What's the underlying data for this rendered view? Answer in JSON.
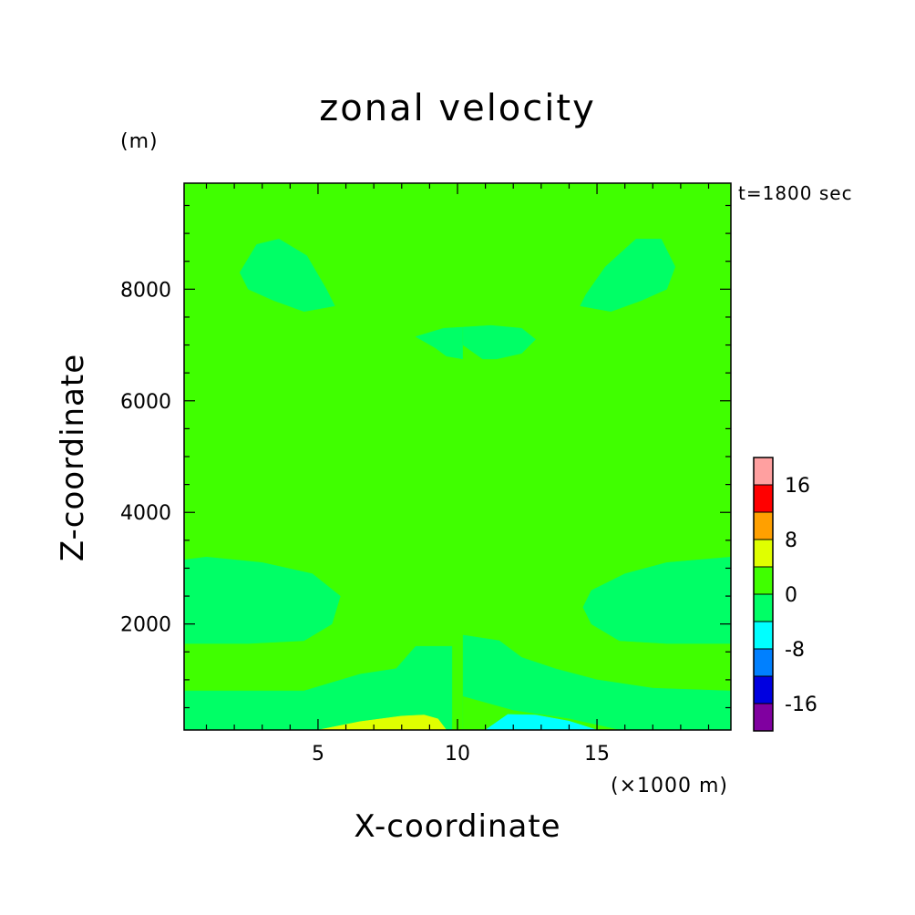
{
  "chart_data": {
    "type": "heatmap",
    "title": "zonal velocity",
    "xlabel": "X-coordinate",
    "ylabel": "Z-coordinate",
    "x_unit": "(×1000 m)",
    "y_unit": "(m)",
    "annotation": "t=1800 sec",
    "xlim": [
      0.2,
      19.8
    ],
    "ylim": [
      100,
      9900
    ],
    "x_ticks": [
      5,
      10,
      15
    ],
    "y_ticks": [
      2000,
      4000,
      6000,
      8000
    ],
    "colorbar": {
      "levels": [
        -20,
        -16,
        -12,
        -8,
        -4,
        0,
        4,
        8,
        12,
        16,
        20
      ],
      "colors": [
        "#8000a0",
        "#0000e0",
        "#0080ff",
        "#00ffff",
        "#00ff66",
        "#40ff00",
        "#e0ff00",
        "#ffa000",
        "#ff0000",
        "#ffa0a0"
      ],
      "tick_labels": [
        "-16",
        "-8",
        "0",
        "8",
        "16"
      ],
      "tick_values": [
        -16,
        -8,
        0,
        8,
        16
      ]
    },
    "background_value": 2,
    "regions": [
      {
        "name": "left-lower-band",
        "value": -2,
        "points": [
          [
            0.2,
            100
          ],
          [
            5,
            100
          ],
          [
            7.5,
            250
          ],
          [
            9.8,
            100
          ],
          [
            9.8,
            1600
          ],
          [
            8.5,
            1600
          ],
          [
            7.8,
            1200
          ],
          [
            6.5,
            1100
          ],
          [
            4.5,
            800
          ],
          [
            0.2,
            800
          ]
        ]
      },
      {
        "name": "left-mid-blob",
        "value": -2,
        "points": [
          [
            0.2,
            1650
          ],
          [
            2.5,
            1650
          ],
          [
            4.5,
            1700
          ],
          [
            5.5,
            2000
          ],
          [
            5.8,
            2500
          ],
          [
            4.8,
            2900
          ],
          [
            3,
            3100
          ],
          [
            1,
            3200
          ],
          [
            0.2,
            3150
          ]
        ]
      },
      {
        "name": "left-upper-blob",
        "value": -2,
        "points": [
          [
            2.2,
            8300
          ],
          [
            2.8,
            8800
          ],
          [
            3.6,
            8900
          ],
          [
            4.6,
            8600
          ],
          [
            5.3,
            8000
          ],
          [
            5.6,
            7700
          ],
          [
            4.5,
            7600
          ],
          [
            3.4,
            7800
          ],
          [
            2.5,
            8000
          ]
        ]
      },
      {
        "name": "center-upper-lens-left",
        "value": -2,
        "points": [
          [
            8.5,
            7150
          ],
          [
            9.5,
            7300
          ],
          [
            10.2,
            7320
          ],
          [
            10.2,
            6750
          ],
          [
            9.6,
            6800
          ],
          [
            9.2,
            6950
          ]
        ]
      },
      {
        "name": "right-half",
        "value": 2,
        "points": [
          [
            10.2,
            9900
          ],
          [
            19.8,
            9900
          ],
          [
            19.8,
            100
          ],
          [
            10.2,
            100
          ]
        ]
      },
      {
        "name": "right-upper-blob",
        "value": -2,
        "points": [
          [
            14.4,
            7700
          ],
          [
            15.5,
            7600
          ],
          [
            16.6,
            7800
          ],
          [
            17.5,
            8000
          ],
          [
            17.8,
            8400
          ],
          [
            17.3,
            8900
          ],
          [
            16.4,
            8900
          ],
          [
            15.3,
            8400
          ],
          [
            14.6,
            7900
          ]
        ]
      },
      {
        "name": "center-upper-lens-right",
        "value": -2,
        "points": [
          [
            10.2,
            7320
          ],
          [
            11.2,
            7350
          ],
          [
            12.3,
            7300
          ],
          [
            12.8,
            7100
          ],
          [
            12.3,
            6850
          ],
          [
            11.4,
            6750
          ],
          [
            10.9,
            6750
          ],
          [
            10.2,
            7000
          ]
        ]
      },
      {
        "name": "right-mid-blob",
        "value": -2,
        "points": [
          [
            19.8,
            3200
          ],
          [
            17.5,
            3100
          ],
          [
            16,
            2900
          ],
          [
            14.8,
            2600
          ],
          [
            14.5,
            2300
          ],
          [
            14.8,
            2000
          ],
          [
            15.8,
            1700
          ],
          [
            17.5,
            1650
          ],
          [
            19.8,
            1650
          ]
        ]
      },
      {
        "name": "right-lower-band",
        "value": -2,
        "points": [
          [
            10.2,
            1800
          ],
          [
            11.5,
            1700
          ],
          [
            12.3,
            1400
          ],
          [
            13.5,
            1200
          ],
          [
            15,
            1000
          ],
          [
            17,
            850
          ],
          [
            19.8,
            800
          ],
          [
            19.8,
            100
          ],
          [
            10.2,
            100
          ]
        ]
      },
      {
        "name": "right-bottom-band",
        "value": 2,
        "points": [
          [
            10.2,
            100
          ],
          [
            10.2,
            700
          ],
          [
            12,
            450
          ],
          [
            14,
            300
          ],
          [
            15.8,
            100
          ]
        ]
      },
      {
        "name": "left-bottom-yellow",
        "value": 6,
        "points": [
          [
            5,
            100
          ],
          [
            6.5,
            250
          ],
          [
            8,
            350
          ],
          [
            8.8,
            370
          ],
          [
            9.3,
            300
          ],
          [
            9.6,
            100
          ]
        ]
      },
      {
        "name": "right-bottom-cyan",
        "value": -6,
        "points": [
          [
            11,
            100
          ],
          [
            11.8,
            380
          ],
          [
            12.8,
            370
          ],
          [
            14,
            260
          ],
          [
            15,
            100
          ]
        ]
      }
    ]
  }
}
